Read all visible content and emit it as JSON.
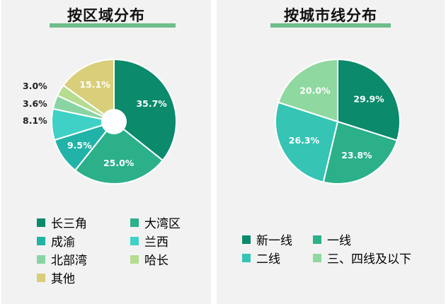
{
  "chart_data": [
    {
      "type": "pie",
      "title": "按区域分布",
      "categories": [
        "长三角",
        "大湾区",
        "成渝",
        "兰西",
        "北部湾",
        "哈长",
        "其他"
      ],
      "values": [
        35.7,
        25.0,
        9.5,
        8.1,
        3.6,
        3.0,
        15.1
      ],
      "value_labels": [
        "35.7%",
        "25.0%",
        "9.5%",
        "8.1%",
        "3.6%",
        "3.0%",
        "15.1%"
      ],
      "colors": [
        "#0b8a6c",
        "#2bb08a",
        "#22b3a8",
        "#3fd1c6",
        "#8ad4a4",
        "#b5dc8f",
        "#d9cf7a"
      ],
      "legend_position": "bottom"
    },
    {
      "type": "pie",
      "title": "按城市线分布",
      "categories": [
        "新一线",
        "一线",
        "二线",
        "三、四线及以下"
      ],
      "values": [
        29.9,
        23.8,
        26.3,
        20.0
      ],
      "value_labels": [
        "29.9%",
        "23.8%",
        "26.3%",
        "20.0%"
      ],
      "colors": [
        "#0b8a6c",
        "#2bb08a",
        "#36c4b4",
        "#8fd8a0"
      ],
      "legend_position": "bottom"
    }
  ]
}
